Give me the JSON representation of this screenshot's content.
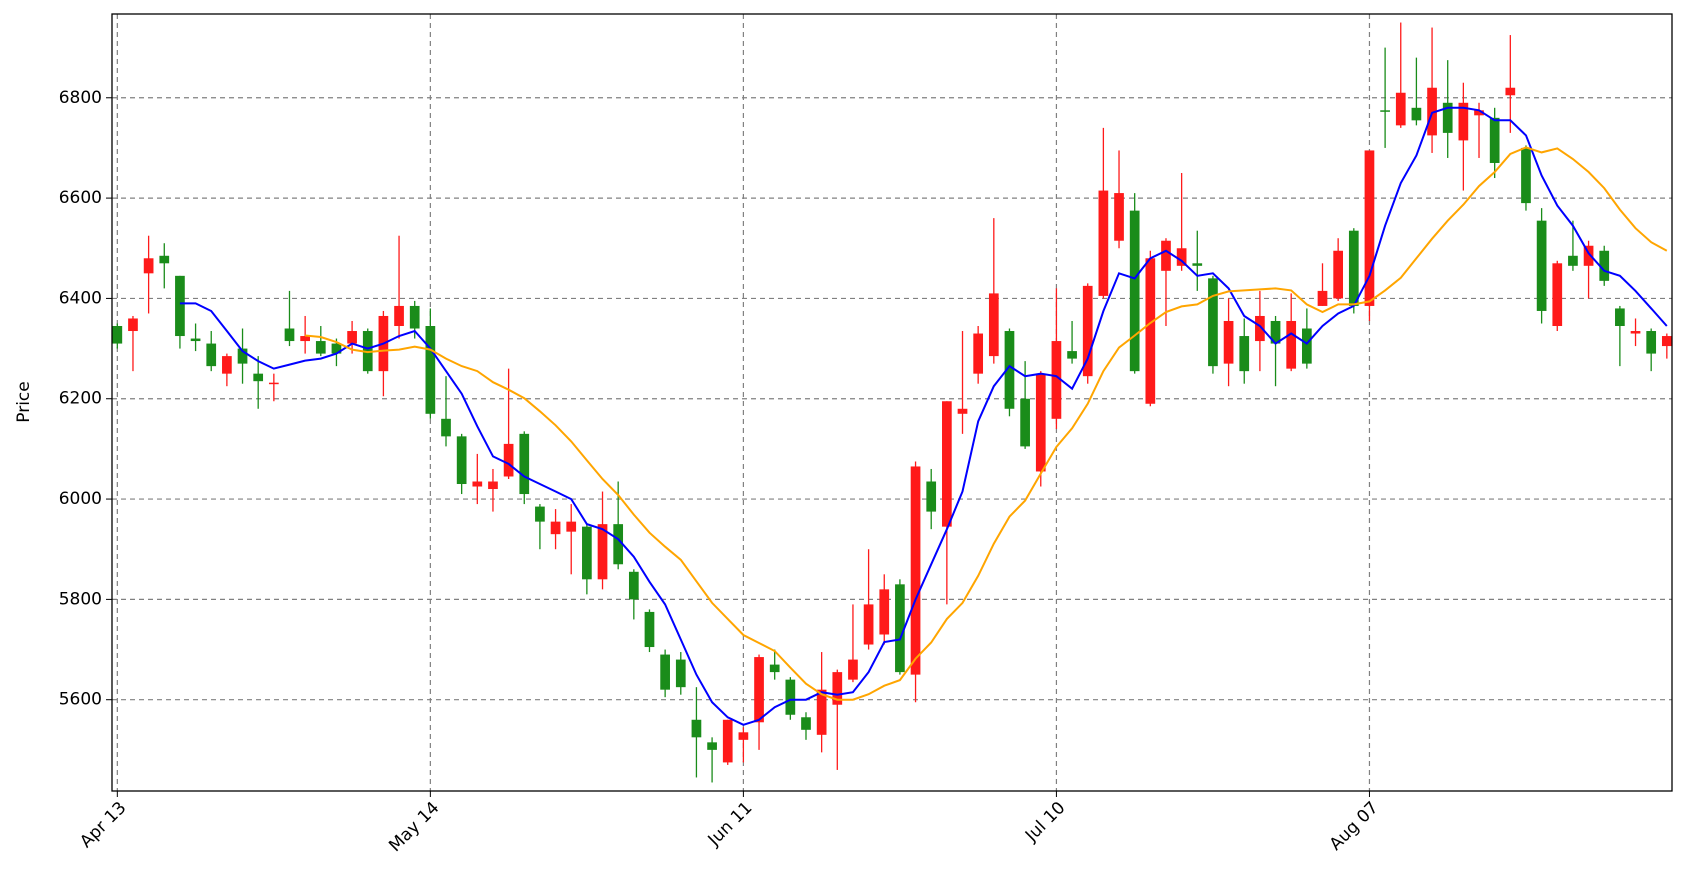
{
  "chart_data": {
    "type": "candlestick",
    "ylabel": "Price",
    "categories": [
      "Apr 13",
      null,
      null,
      null,
      null,
      null,
      null,
      null,
      null,
      null,
      null,
      null,
      null,
      null,
      null,
      null,
      null,
      null,
      null,
      null,
      "May 14",
      null,
      null,
      null,
      null,
      null,
      null,
      null,
      null,
      null,
      null,
      null,
      null,
      null,
      null,
      null,
      null,
      null,
      null,
      null,
      "Jun 11",
      null,
      null,
      null,
      null,
      null,
      null,
      null,
      null,
      null,
      null,
      null,
      null,
      null,
      null,
      null,
      null,
      null,
      null,
      null,
      "Jul 10",
      null,
      null,
      null,
      null,
      null,
      null,
      null,
      null,
      null,
      null,
      null,
      null,
      null,
      null,
      null,
      null,
      null,
      null,
      null,
      "Aug 07",
      null,
      null,
      null,
      null,
      null,
      null,
      null,
      null,
      null,
      null,
      null,
      null,
      null,
      null,
      null,
      null,
      null,
      null,
      null
    ],
    "open": [
      6345,
      6335,
      6450,
      6485,
      6445,
      6320,
      6310,
      6250,
      6300,
      6250,
      6230,
      6340,
      6315,
      6315,
      6310,
      6310,
      6335,
      6255,
      6345,
      6385,
      6345,
      6160,
      6125,
      6025,
      6020,
      6045,
      6130,
      5985,
      5930,
      5935,
      5945,
      5840,
      5950,
      5855,
      5775,
      5690,
      5680,
      5560,
      5515,
      5475,
      5520,
      5555,
      5670,
      5640,
      5565,
      5530,
      5590,
      5640,
      5710,
      5730,
      5830,
      5650,
      6035,
      5945,
      6170,
      6250,
      6285,
      6335,
      6200,
      6055,
      6160,
      6295,
      6245,
      6405,
      6515,
      6575,
      6190,
      6455,
      6465,
      6470,
      6440,
      6270,
      6325,
      6315,
      6355,
      6260,
      6340,
      6385,
      6400,
      6535,
      6385,
      6775,
      6745,
      6780,
      6725,
      6790,
      6715,
      6765,
      6760,
      6805,
      6700,
      6555,
      6345,
      6485,
      6465,
      6495,
      6380,
      6330,
      6335,
      6305
    ],
    "high": [
      6350,
      6365,
      6525,
      6510,
      6445,
      6350,
      6335,
      6290,
      6340,
      6285,
      6250,
      6415,
      6365,
      6345,
      6320,
      6355,
      6340,
      6375,
      6525,
      6395,
      6380,
      6245,
      6130,
      6090,
      6060,
      6260,
      6135,
      5990,
      5980,
      5990,
      5950,
      6015,
      6035,
      5860,
      5780,
      5700,
      5695,
      5625,
      5525,
      5560,
      5545,
      5690,
      5700,
      5645,
      5575,
      5695,
      5660,
      5790,
      5900,
      5850,
      5840,
      6075,
      6060,
      6195,
      6335,
      6345,
      6560,
      6340,
      6275,
      6255,
      6420,
      6355,
      6430,
      6740,
      6695,
      6610,
      6495,
      6520,
      6650,
      6535,
      6445,
      6400,
      6360,
      6415,
      6365,
      6410,
      6380,
      6470,
      6520,
      6540,
      6695,
      6900,
      6950,
      6880,
      6940,
      6875,
      6830,
      6790,
      6780,
      6925,
      6705,
      6580,
      6475,
      6555,
      6515,
      6505,
      6385,
      6360,
      6340,
      6330
    ],
    "low": [
      6300,
      6255,
      6370,
      6420,
      6300,
      6295,
      6255,
      6225,
      6230,
      6180,
      6195,
      6305,
      6290,
      6285,
      6265,
      6290,
      6250,
      6205,
      6320,
      6320,
      6160,
      6105,
      6010,
      5990,
      5975,
      6040,
      5990,
      5900,
      5900,
      5850,
      5810,
      5820,
      5860,
      5760,
      5695,
      5605,
      5610,
      5445,
      5435,
      5470,
      5475,
      5500,
      5640,
      5560,
      5520,
      5495,
      5460,
      5635,
      5700,
      5710,
      5650,
      5595,
      5940,
      5790,
      6130,
      6230,
      6270,
      6165,
      6100,
      6025,
      6140,
      6270,
      6230,
      6400,
      6500,
      6250,
      6185,
      6345,
      6455,
      6415,
      6250,
      6225,
      6230,
      6255,
      6225,
      6255,
      6260,
      6385,
      6395,
      6370,
      6355,
      6700,
      6740,
      6745,
      6690,
      6680,
      6615,
      6680,
      6640,
      6730,
      6575,
      6350,
      6335,
      6455,
      6400,
      6425,
      6265,
      6305,
      6255,
      6280
    ],
    "close": [
      6310,
      6360,
      6480,
      6470,
      6325,
      6315,
      6265,
      6285,
      6270,
      6235,
      6232,
      6315,
      6325,
      6290,
      6290,
      6335,
      6255,
      6365,
      6385,
      6340,
      6170,
      6125,
      6030,
      6035,
      6035,
      6110,
      6010,
      5955,
      5955,
      5955,
      5840,
      5950,
      5870,
      5800,
      5705,
      5620,
      5625,
      5525,
      5500,
      5560,
      5535,
      5685,
      5655,
      5570,
      5540,
      5620,
      5655,
      5680,
      5790,
      5820,
      5655,
      6065,
      5975,
      6195,
      6180,
      6330,
      6410,
      6180,
      6105,
      6250,
      6315,
      6280,
      6425,
      6615,
      6610,
      6255,
      6480,
      6515,
      6500,
      6465,
      6265,
      6355,
      6255,
      6365,
      6310,
      6355,
      6270,
      6415,
      6495,
      6385,
      6695,
      6772,
      6810,
      6755,
      6820,
      6730,
      6790,
      6775,
      6670,
      6820,
      6590,
      6375,
      6470,
      6465,
      6505,
      6435,
      6345,
      6335,
      6290,
      6325
    ],
    "up_color": "#ff1a1a",
    "down_color": "#1a8c1a",
    "ma_lines": [
      {
        "color": "#0000ff",
        "values": [
          null,
          null,
          null,
          null,
          6390,
          6390,
          6375,
          6335,
          6295,
          6275,
          6260,
          6268,
          6276,
          6280,
          6290,
          6310,
          6300,
          6310,
          6325,
          6335,
          6300,
          6255,
          6210,
          6145,
          6085,
          6070,
          6045,
          6030,
          6015,
          6000,
          5950,
          5940,
          5920,
          5885,
          5835,
          5790,
          5720,
          5650,
          5595,
          5565,
          5550,
          5560,
          5585,
          5600,
          5600,
          5615,
          5610,
          5615,
          5655,
          5715,
          5720,
          5800,
          5870,
          5940,
          6015,
          6155,
          6225,
          6265,
          6245,
          6250,
          6245,
          6220,
          6280,
          6375,
          6450,
          6440,
          6480,
          6495,
          6475,
          6445,
          6450,
          6420,
          6365,
          6345,
          6310,
          6330,
          6310,
          6345,
          6370,
          6385,
          6445,
          6545,
          6630,
          6685,
          6770,
          6780,
          6780,
          6775,
          6755,
          6755,
          6725,
          6645,
          6585,
          6545,
          6490,
          6455,
          6445,
          6415,
          6380,
          6345
        ]
      },
      {
        "color": "#ffa500",
        "values": [
          null,
          null,
          null,
          null,
          null,
          null,
          null,
          null,
          null,
          null,
          null,
          null,
          6326,
          6323,
          6313,
          6298,
          6293,
          6296,
          6298,
          6304,
          6298,
          6280,
          6265,
          6255,
          6233,
          6218,
          6201,
          6175,
          6147,
          6115,
          6077,
          6040,
          6008,
          5969,
          5933,
          5905,
          5879,
          5836,
          5793,
          5761,
          5729,
          5713,
          5697,
          5664,
          5632,
          5611,
          5600,
          5600,
          5611,
          5628,
          5639,
          5682,
          5714,
          5761,
          5793,
          5847,
          5911,
          5965,
          5997,
          6051,
          6104,
          6141,
          6190,
          6255,
          6302,
          6326,
          6351,
          6373,
          6384,
          6388,
          6405,
          6414,
          6416,
          6418,
          6420,
          6416,
          6388,
          6373,
          6388,
          6388,
          6394,
          6416,
          6441,
          6480,
          6519,
          6555,
          6587,
          6624,
          6652,
          6688,
          6701,
          6691,
          6699,
          6678,
          6652,
          6620,
          6577,
          6540,
          6512,
          6495
        ]
      }
    ],
    "ylim": [
      5418,
      6967
    ],
    "yticks": [
      5600,
      5800,
      6000,
      6200,
      6400,
      6600,
      6800
    ],
    "grid": true
  }
}
